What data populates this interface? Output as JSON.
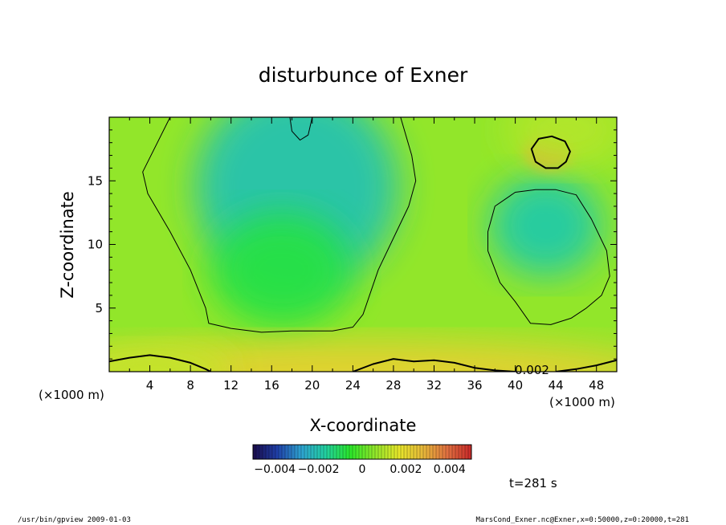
{
  "footer": {
    "left": "/usr/bin/gpview   2009-01-03",
    "right": "MarsCond_Exner.nc@Exner,x=0:50000,z=0:20000,t=281"
  },
  "chart_data": {
    "type": "heatmap",
    "title": "disturbunce of Exner",
    "xlabel": "X-coordinate",
    "ylabel": "Z-coordinate",
    "x_unit_label": "(×1000 m)",
    "y_unit_label": "(×1000 m)",
    "x_ticks": [
      4,
      8,
      12,
      16,
      20,
      24,
      28,
      32,
      36,
      40,
      44,
      48
    ],
    "y_ticks": [
      5,
      10,
      15
    ],
    "xlim": [
      0,
      50
    ],
    "ylim": [
      0,
      20
    ],
    "time_label": "t=281 s",
    "contour_label": "0.002",
    "colorbar": {
      "ticks": [
        "−0.004",
        "−0.002",
        "0",
        "0.002",
        "0.004"
      ],
      "tick_values": [
        -0.004,
        -0.002,
        0,
        0.002,
        0.004
      ],
      "range": [
        -0.005,
        0.005
      ],
      "colors": [
        "#1a0a4a",
        "#1f3fa8",
        "#2ea3d0",
        "#22d0a0",
        "#2ae62a",
        "#8fe62a",
        "#e6e62a",
        "#e6b83a",
        "#e07040",
        "#c82828"
      ]
    },
    "contours": [
      {
        "level": 0.001,
        "points": [
          [
            6.0,
            20.0
          ],
          [
            3.3,
            15.7
          ],
          [
            3.8,
            14.0
          ],
          [
            6.0,
            11.0
          ],
          [
            8.0,
            8.0
          ],
          [
            9.5,
            5.0
          ],
          [
            9.8,
            3.8
          ],
          [
            12.0,
            3.4
          ],
          [
            15.0,
            3.1
          ],
          [
            18.0,
            3.2
          ],
          [
            22.0,
            3.2
          ],
          [
            24.0,
            3.5
          ],
          [
            25.0,
            4.5
          ],
          [
            26.5,
            8.0
          ],
          [
            28.0,
            10.5
          ],
          [
            29.5,
            13.0
          ],
          [
            30.2,
            15.0
          ],
          [
            29.8,
            17.0
          ],
          [
            28.7,
            20.0
          ]
        ]
      },
      {
        "level": 0.001,
        "points": [
          [
            38.0,
            13.0
          ],
          [
            40.0,
            14.1
          ],
          [
            42.0,
            14.3
          ],
          [
            44.0,
            14.3
          ],
          [
            46.0,
            13.9
          ],
          [
            47.5,
            12.0
          ],
          [
            49.0,
            9.5
          ],
          [
            49.3,
            7.5
          ],
          [
            48.5,
            6.0
          ],
          [
            47.0,
            5.0
          ],
          [
            45.5,
            4.2
          ],
          [
            43.5,
            3.7
          ],
          [
            41.5,
            3.8
          ],
          [
            40.0,
            5.5
          ],
          [
            38.5,
            7.0
          ],
          [
            37.3,
            9.5
          ],
          [
            37.3,
            11.0
          ]
        ]
      },
      {
        "level": 0.0,
        "points": [
          [
            17.8,
            20.0
          ],
          [
            18.0,
            18.9
          ],
          [
            18.8,
            18.2
          ],
          [
            19.6,
            18.6
          ],
          [
            20.0,
            20.0
          ]
        ]
      },
      {
        "level": 0.002,
        "points": [
          [
            41.6,
            17.5
          ],
          [
            42.0,
            16.5
          ],
          [
            43.0,
            16.0
          ],
          [
            44.2,
            16.0
          ],
          [
            45.0,
            16.5
          ],
          [
            45.4,
            17.3
          ],
          [
            44.9,
            18.1
          ],
          [
            43.6,
            18.5
          ],
          [
            42.3,
            18.3
          ]
        ]
      },
      {
        "level": 0.002,
        "points": [
          [
            0.0,
            0.8
          ],
          [
            2.0,
            1.1
          ],
          [
            4.0,
            1.3
          ],
          [
            6.0,
            1.1
          ],
          [
            8.0,
            0.7
          ],
          [
            9.5,
            0.2
          ],
          [
            10.0,
            0.0
          ]
        ]
      },
      {
        "level": 0.002,
        "points": [
          [
            24.0,
            0.0
          ],
          [
            26.0,
            0.6
          ],
          [
            28.0,
            1.0
          ],
          [
            30.0,
            0.8
          ],
          [
            32.0,
            0.9
          ],
          [
            34.0,
            0.7
          ],
          [
            36.0,
            0.3
          ],
          [
            38.0,
            0.1
          ],
          [
            40.0,
            0.0
          ]
        ]
      },
      {
        "level": 0.002,
        "points": [
          [
            44.0,
            0.0
          ],
          [
            46.0,
            0.2
          ],
          [
            48.0,
            0.5
          ],
          [
            50.0,
            0.9
          ]
        ]
      }
    ],
    "anomalies": [
      {
        "x": 18.5,
        "z": 14.5,
        "rx": 10.0,
        "rz": 8.0,
        "value": -0.002
      },
      {
        "x": 17.0,
        "z": 8.0,
        "rx": 7.0,
        "rz": 4.5,
        "value": -0.0008
      },
      {
        "x": 43.0,
        "z": 11.5,
        "rx": 5.5,
        "rz": 4.0,
        "value": -0.0018
      },
      {
        "x": 43.3,
        "z": 17.3,
        "rx": 2.4,
        "rz": 1.4,
        "value": 0.003
      },
      {
        "x": 25.0,
        "z": 0.0,
        "rx": 30.0,
        "rz": 2.5,
        "value": 0.0022
      },
      {
        "x": 4.0,
        "z": 0.0,
        "rx": 8.0,
        "rz": 2.0,
        "value": 0.0012
      },
      {
        "x": 45.0,
        "z": 19.0,
        "rx": 6.0,
        "rz": 3.0,
        "value": 0.001
      }
    ],
    "background_value": 0.0006
  }
}
